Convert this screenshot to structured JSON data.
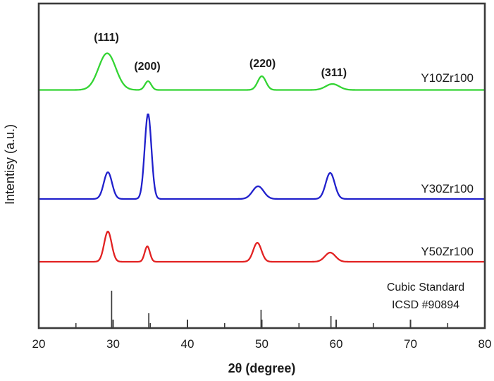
{
  "chart_data": {
    "type": "line",
    "title": "",
    "xlabel": "2θ (degree)",
    "ylabel": "Intentisy (a.u.)",
    "xlim": [
      20,
      80
    ],
    "grid": false,
    "legend_position": "right-of-each-curve",
    "x_major_ticks": [
      20,
      30,
      40,
      50,
      60,
      70,
      80
    ],
    "x_minor_ticks": [
      25,
      35,
      45,
      55,
      65,
      75
    ],
    "axis_color": "#3b3b3b",
    "text_color": "#1a1a1a",
    "peak_annotations": [
      {
        "label": "(111)",
        "x": 29.1,
        "y": 58
      },
      {
        "label": "(200)",
        "x": 34.6,
        "y": 99
      },
      {
        "label": "(220)",
        "x": 50.1,
        "y": 95
      },
      {
        "label": "(311)",
        "x": 59.7,
        "y": 108
      }
    ],
    "series": [
      {
        "name": "Y10Zr100",
        "color": "#33d433",
        "baseline_y": 127.5,
        "label_y": 116,
        "peaks": [
          {
            "x": 29.2,
            "h": 52,
            "w": 1.15
          },
          {
            "x": 34.7,
            "h": 12.5,
            "w": 0.42
          },
          {
            "x": 50.0,
            "h": 19.5,
            "w": 0.55
          },
          {
            "x": 59.5,
            "h": 8.5,
            "w": 0.9
          }
        ]
      },
      {
        "name": "Y30Zr100",
        "color": "#2121cc",
        "baseline_y": 282,
        "label_y": 273,
        "peaks": [
          {
            "x": 29.3,
            "h": 38,
            "w": 0.55
          },
          {
            "x": 34.7,
            "h": 121,
            "w": 0.45
          },
          {
            "x": 49.5,
            "h": 18,
            "w": 0.75
          },
          {
            "x": 59.2,
            "h": 37,
            "w": 0.6
          }
        ]
      },
      {
        "name": "Y50Zr100",
        "color": "#e22222",
        "baseline_y": 371,
        "label_y": 362,
        "peaks": [
          {
            "x": 29.3,
            "h": 43,
            "w": 0.5
          },
          {
            "x": 34.6,
            "h": 22,
            "w": 0.35
          },
          {
            "x": 49.4,
            "h": 27,
            "w": 0.55
          },
          {
            "x": 59.2,
            "h": 13,
            "w": 0.7
          }
        ]
      }
    ],
    "standard": {
      "label_line1": "Cubic Standard",
      "label_line2": "ICSD #90894",
      "color": "#3b3b3b",
      "lines": [
        {
          "x": 29.8,
          "h": 52
        },
        {
          "x": 34.8,
          "h": 20
        },
        {
          "x": 49.9,
          "h": 25
        },
        {
          "x": 59.3,
          "h": 16
        }
      ]
    }
  }
}
